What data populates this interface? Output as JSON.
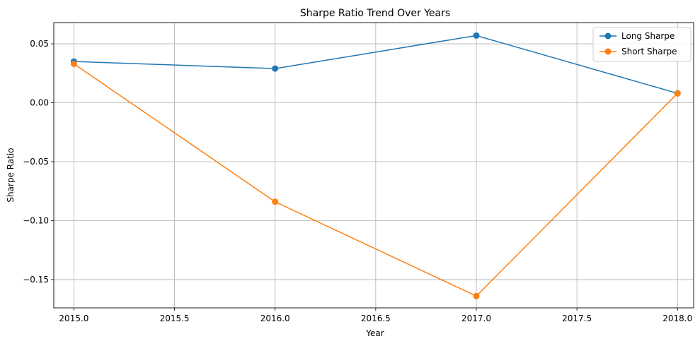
{
  "chart_data": {
    "type": "line",
    "title": "Sharpe Ratio Trend Over Years",
    "xlabel": "Year",
    "ylabel": "Sharpe Ratio",
    "xlim": [
      2014.9,
      2018.08
    ],
    "ylim": [
      -0.174,
      0.068
    ],
    "x_ticks": [
      2015.0,
      2015.5,
      2016.0,
      2016.5,
      2017.0,
      2017.5,
      2018.0
    ],
    "x_tick_labels": [
      "2015.0",
      "2015.5",
      "2016.0",
      "2016.5",
      "2017.0",
      "2017.5",
      "2018.0"
    ],
    "y_ticks": [
      0.05,
      0.0,
      -0.05,
      -0.1,
      -0.15
    ],
    "y_tick_labels": [
      "0.05",
      "0.00",
      "−0.05",
      "−0.10",
      "−0.15"
    ],
    "grid": true,
    "legend_position": "top-right",
    "x": [
      2015.0,
      2016.0,
      2017.0,
      2018.0
    ],
    "series": [
      {
        "name": "Long Sharpe",
        "color": "#1f77b4",
        "marker": "circle",
        "values": [
          0.035,
          0.029,
          0.057,
          0.008
        ]
      },
      {
        "name": "Short Sharpe",
        "color": "#ff7f0e",
        "marker": "circle",
        "values": [
          0.033,
          -0.084,
          -0.164,
          0.008
        ]
      }
    ]
  }
}
